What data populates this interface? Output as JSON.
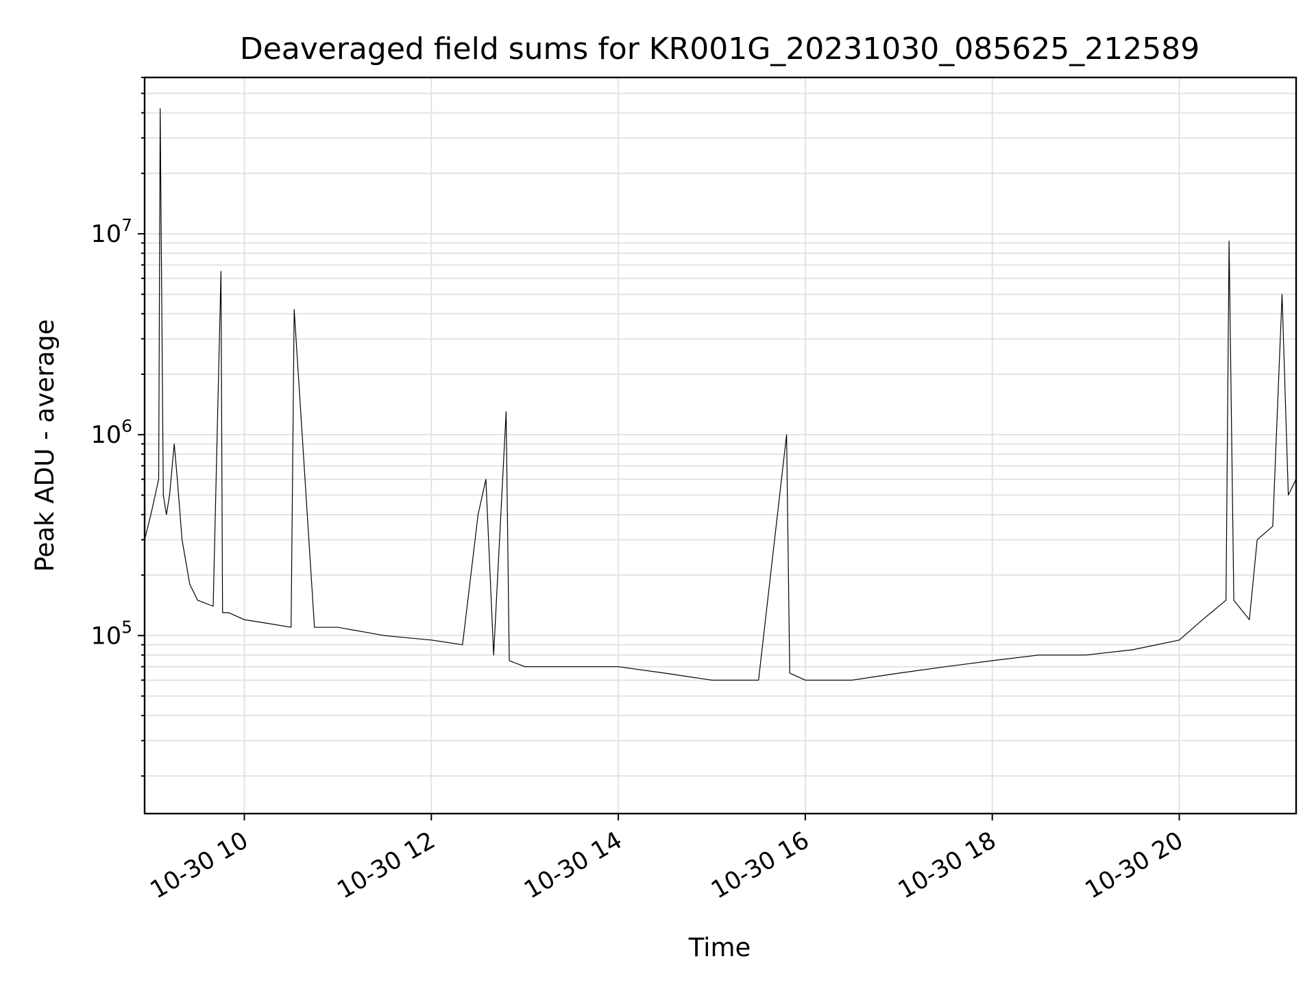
{
  "chart_data": {
    "type": "line",
    "title": "Deaveraged field sums for KR001G_20231030_085625_212589",
    "xlabel": "Time",
    "ylabel": "Peak ADU - average",
    "yscale": "log",
    "ylim": [
      13000,
      60000000
    ],
    "xlim": [
      "2023-10-30 08:56",
      "2023-10-30 21:15"
    ],
    "grid": true,
    "x_ticks": [
      {
        "time": "2023-10-30 10:00",
        "label": "10-30 10"
      },
      {
        "time": "2023-10-30 12:00",
        "label": "10-30 12"
      },
      {
        "time": "2023-10-30 14:00",
        "label": "10-30 14"
      },
      {
        "time": "2023-10-30 16:00",
        "label": "10-30 16"
      },
      {
        "time": "2023-10-30 18:00",
        "label": "10-30 18"
      },
      {
        "time": "2023-10-30 20:00",
        "label": "10-30 20"
      }
    ],
    "y_ticks": [
      {
        "value": 100000,
        "base": "10",
        "exp": "5"
      },
      {
        "value": 1000000,
        "base": "10",
        "exp": "6"
      },
      {
        "value": 10000000,
        "base": "10",
        "exp": "7"
      }
    ],
    "series": [
      {
        "color": "#000000",
        "x": [
          "2023-10-30 08:56",
          "2023-10-30 09:00",
          "2023-10-30 09:05",
          "2023-10-30 09:06",
          "2023-10-30 09:08",
          "2023-10-30 09:10",
          "2023-10-30 09:12",
          "2023-10-30 09:15",
          "2023-10-30 09:17",
          "2023-10-30 09:20",
          "2023-10-30 09:25",
          "2023-10-30 09:30",
          "2023-10-30 09:40",
          "2023-10-30 09:45",
          "2023-10-30 09:46",
          "2023-10-30 09:50",
          "2023-10-30 10:00",
          "2023-10-30 10:15",
          "2023-10-30 10:30",
          "2023-10-30 10:32",
          "2023-10-30 10:45",
          "2023-10-30 11:00",
          "2023-10-30 11:30",
          "2023-10-30 12:00",
          "2023-10-30 12:20",
          "2023-10-30 12:30",
          "2023-10-30 12:35",
          "2023-10-30 12:40",
          "2023-10-30 12:48",
          "2023-10-30 12:50",
          "2023-10-30 13:00",
          "2023-10-30 13:30",
          "2023-10-30 14:00",
          "2023-10-30 14:30",
          "2023-10-30 15:00",
          "2023-10-30 15:30",
          "2023-10-30 15:48",
          "2023-10-30 15:50",
          "2023-10-30 16:00",
          "2023-10-30 16:30",
          "2023-10-30 17:00",
          "2023-10-30 17:30",
          "2023-10-30 18:00",
          "2023-10-30 18:30",
          "2023-10-30 19:00",
          "2023-10-30 19:30",
          "2023-10-30 20:00",
          "2023-10-30 20:15",
          "2023-10-30 20:30",
          "2023-10-30 20:32",
          "2023-10-30 20:35",
          "2023-10-30 20:45",
          "2023-10-30 20:50",
          "2023-10-30 21:00",
          "2023-10-30 21:06",
          "2023-10-30 21:10",
          "2023-10-30 21:15"
        ],
        "y": [
          300000,
          400000,
          600000,
          42000000,
          500000,
          400000,
          500000,
          900000,
          600000,
          300000,
          180000,
          150000,
          140000,
          6500000,
          130000,
          130000,
          120000,
          115000,
          110000,
          4200000,
          110000,
          110000,
          100000,
          95000,
          90000,
          400000,
          600000,
          80000,
          1300000,
          75000,
          70000,
          70000,
          70000,
          65000,
          60000,
          60000,
          1000000,
          65000,
          60000,
          60000,
          65000,
          70000,
          75000,
          80000,
          80000,
          85000,
          95000,
          120000,
          150000,
          9200000,
          150000,
          120000,
          300000,
          350000,
          5000000,
          500000,
          600000
        ]
      }
    ]
  }
}
